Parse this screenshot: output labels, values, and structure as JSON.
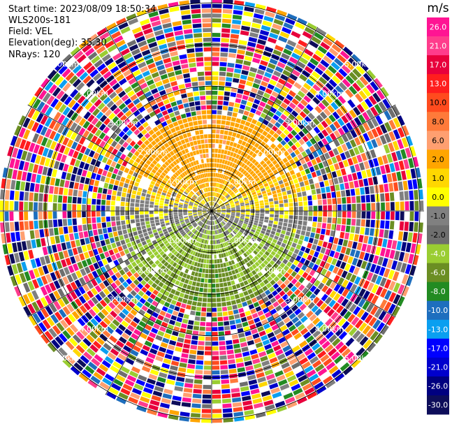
{
  "header": {
    "start_time": "Start time: 2023/08/09 18:50:34",
    "instrument": "WLS200s-181",
    "field": "Field: VEL",
    "elevation": "Elevation(deg): 35.30",
    "nrays": "NRays: 120"
  },
  "chart_data": {
    "type": "heatmap",
    "projection": "polar-ppi",
    "title": "",
    "field": "VEL",
    "units": "m/s",
    "n_rays": 120,
    "range_rings": [
      {
        "km": 1.0,
        "label": "1.00km"
      },
      {
        "km": 2.0,
        "label": "2.00km"
      },
      {
        "km": 3.0,
        "label": "3.00km"
      },
      {
        "km": 4.0,
        "label": "4.00km"
      },
      {
        "km": 5.0,
        "label": "5.00km"
      }
    ],
    "max_range_km": 5.1,
    "clean_data_range_km": 2.3,
    "colorbar": {
      "label": "m/s",
      "ticks": [
        "26.0",
        "21.0",
        "17.0",
        "13.0",
        "10.0",
        "8.0",
        "6.0",
        "2.0",
        "1.0",
        "0.0",
        "-1.0",
        "-2.0",
        "-4.0",
        "-6.0",
        "-8.0",
        "-10.0",
        "-13.0",
        "-17.0",
        "-21.0",
        "-26.0",
        "-30.0"
      ],
      "colors": [
        "#ff1493",
        "#ff3c8c",
        "#e8003c",
        "#ff1e1e",
        "#ff4b1e",
        "#ff7a3a",
        "#ff9f70",
        "#ffa500",
        "#ffd700",
        "#ffff00",
        "#808080",
        "#6e6e6e",
        "#9acd32",
        "#6b8e23",
        "#228b22",
        "#1e6ebe",
        "#0a9ff0",
        "#0000ff",
        "#0000cd",
        "#000080",
        "#0d0d5a"
      ]
    },
    "velocity_pattern": {
      "receding_sector": "north",
      "approaching_sector": "south",
      "notes_in_data_units": "positive up to ~6 m/s north, negative to ~-6 m/s south"
    }
  }
}
